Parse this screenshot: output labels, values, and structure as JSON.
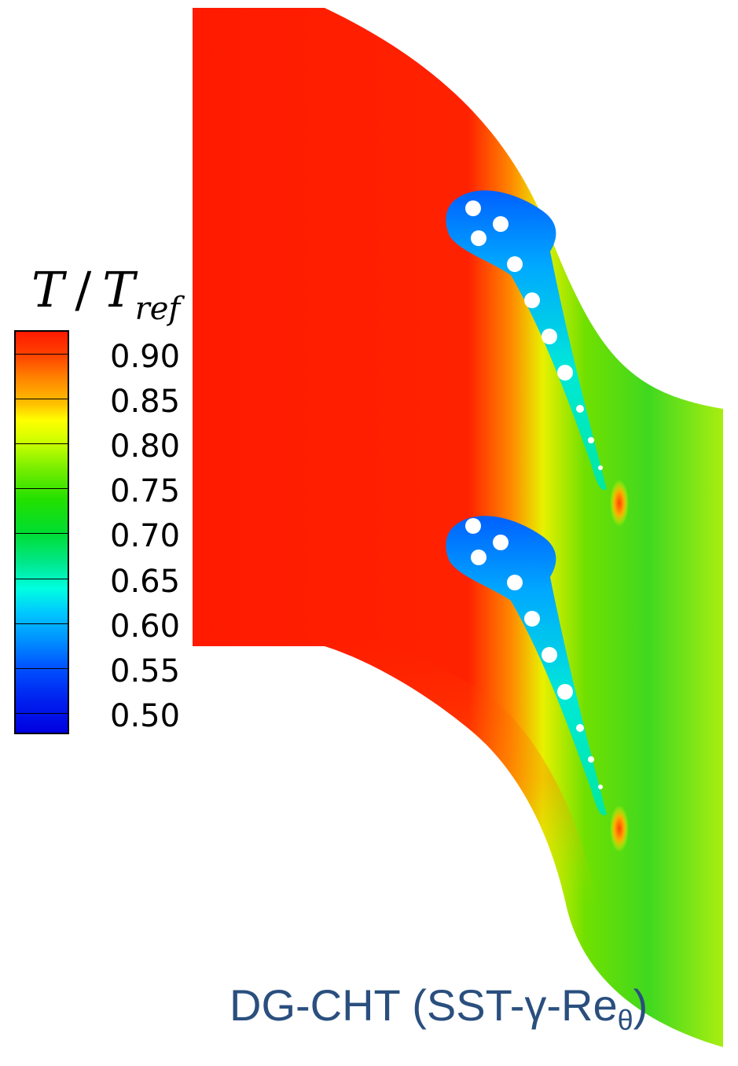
{
  "legend": {
    "variable": "T",
    "separator": "/",
    "reference_base": "T",
    "reference_sub": "ref",
    "levels": [
      "0.90",
      "0.85",
      "0.80",
      "0.75",
      "0.70",
      "0.65",
      "0.60",
      "0.55",
      "0.50"
    ]
  },
  "caption": {
    "main": "DG-CHT (SST-γ-Re",
    "sub": "θ",
    "close": ")"
  },
  "colors": {
    "hot": "#ff1a00",
    "warm": "#ffaa00",
    "mid": "#b8f000",
    "cool": "#00e080",
    "cold": "#0020e0",
    "caption": "#2a4f7e"
  }
}
